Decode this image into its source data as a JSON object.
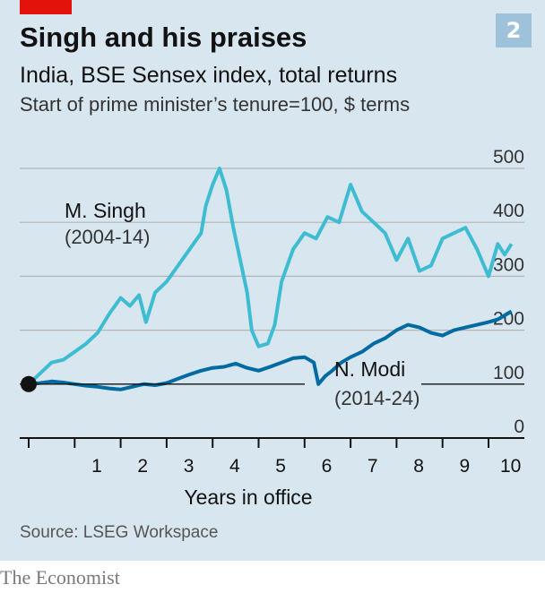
{
  "header": {
    "badge": "2",
    "title": "Singh and his praises",
    "subtitle": "India, BSE Sensex index, total returns",
    "subsubtitle": "Start of prime minister’s tenure=100, $ terms"
  },
  "footer": {
    "source": "Source: LSEG Workspace",
    "brand": "The Economist"
  },
  "colors": {
    "background": "#d7e6ef",
    "singh": "#3ebcd2",
    "modi": "#006ba2",
    "accent_red": "#e3120b",
    "badge": "#9ec2da",
    "baseline": "#121212",
    "grid": "#b4b4b4"
  },
  "chart_data": {
    "type": "line",
    "title": "Singh and his praises",
    "xlabel": "Years in office",
    "ylabel": "",
    "xlim": [
      0,
      10.8
    ],
    "ylim": [
      0,
      500
    ],
    "xticks": [
      0,
      1,
      2,
      3,
      4,
      5,
      6,
      7,
      8,
      9,
      10
    ],
    "xtick_labels": [
      "",
      "1",
      "2",
      "3",
      "4",
      "5",
      "6",
      "7",
      "8",
      "9",
      "10"
    ],
    "yticks": [
      0,
      100,
      200,
      300,
      400,
      500
    ],
    "ytick_labels": [
      "0",
      "100",
      "200",
      "300",
      "400",
      "500"
    ],
    "start_point": {
      "x": 0,
      "y": 100
    },
    "series": [
      {
        "name": "M. Singh",
        "label_line1": "M. Singh",
        "label_line2": "(2004-14)",
        "x": [
          0,
          0.25,
          0.5,
          0.75,
          1.0,
          1.25,
          1.5,
          1.75,
          2.0,
          2.2,
          2.4,
          2.55,
          2.75,
          3.0,
          3.25,
          3.5,
          3.75,
          3.85,
          4.0,
          4.15,
          4.3,
          4.45,
          4.6,
          4.75,
          4.85,
          5.0,
          5.2,
          5.35,
          5.5,
          5.75,
          6.0,
          6.25,
          6.5,
          6.75,
          7.0,
          7.25,
          7.5,
          7.75,
          8.0,
          8.25,
          8.5,
          8.75,
          9.0,
          9.25,
          9.5,
          9.75,
          10.0,
          10.2,
          10.35,
          10.5
        ],
        "values": [
          100,
          120,
          140,
          145,
          160,
          175,
          195,
          230,
          260,
          245,
          265,
          215,
          270,
          290,
          320,
          350,
          380,
          430,
          470,
          500,
          460,
          390,
          330,
          270,
          200,
          170,
          175,
          210,
          290,
          350,
          380,
          370,
          410,
          400,
          470,
          420,
          400,
          380,
          330,
          370,
          310,
          320,
          370,
          380,
          390,
          350,
          300,
          360,
          340,
          360
        ]
      },
      {
        "name": "N. Modi",
        "label_line1": "N. Modi",
        "label_line2": "(2014-24)",
        "x": [
          0,
          0.25,
          0.5,
          0.75,
          1.0,
          1.25,
          1.5,
          1.75,
          2.0,
          2.25,
          2.5,
          2.75,
          3.0,
          3.25,
          3.5,
          3.75,
          4.0,
          4.25,
          4.5,
          4.75,
          5.0,
          5.25,
          5.5,
          5.75,
          6.0,
          6.2,
          6.3,
          6.45,
          6.6,
          6.8,
          7.0,
          7.25,
          7.5,
          7.75,
          8.0,
          8.25,
          8.5,
          8.75,
          9.0,
          9.25,
          9.5,
          9.75,
          10.0,
          10.2,
          10.3,
          10.5
        ],
        "values": [
          100,
          102,
          105,
          103,
          100,
          97,
          95,
          92,
          90,
          95,
          100,
          98,
          102,
          110,
          118,
          125,
          130,
          132,
          138,
          130,
          125,
          132,
          140,
          148,
          150,
          140,
          100,
          115,
          125,
          140,
          150,
          160,
          175,
          185,
          200,
          210,
          205,
          195,
          190,
          200,
          205,
          210,
          215,
          220,
          225,
          235
        ]
      }
    ]
  }
}
